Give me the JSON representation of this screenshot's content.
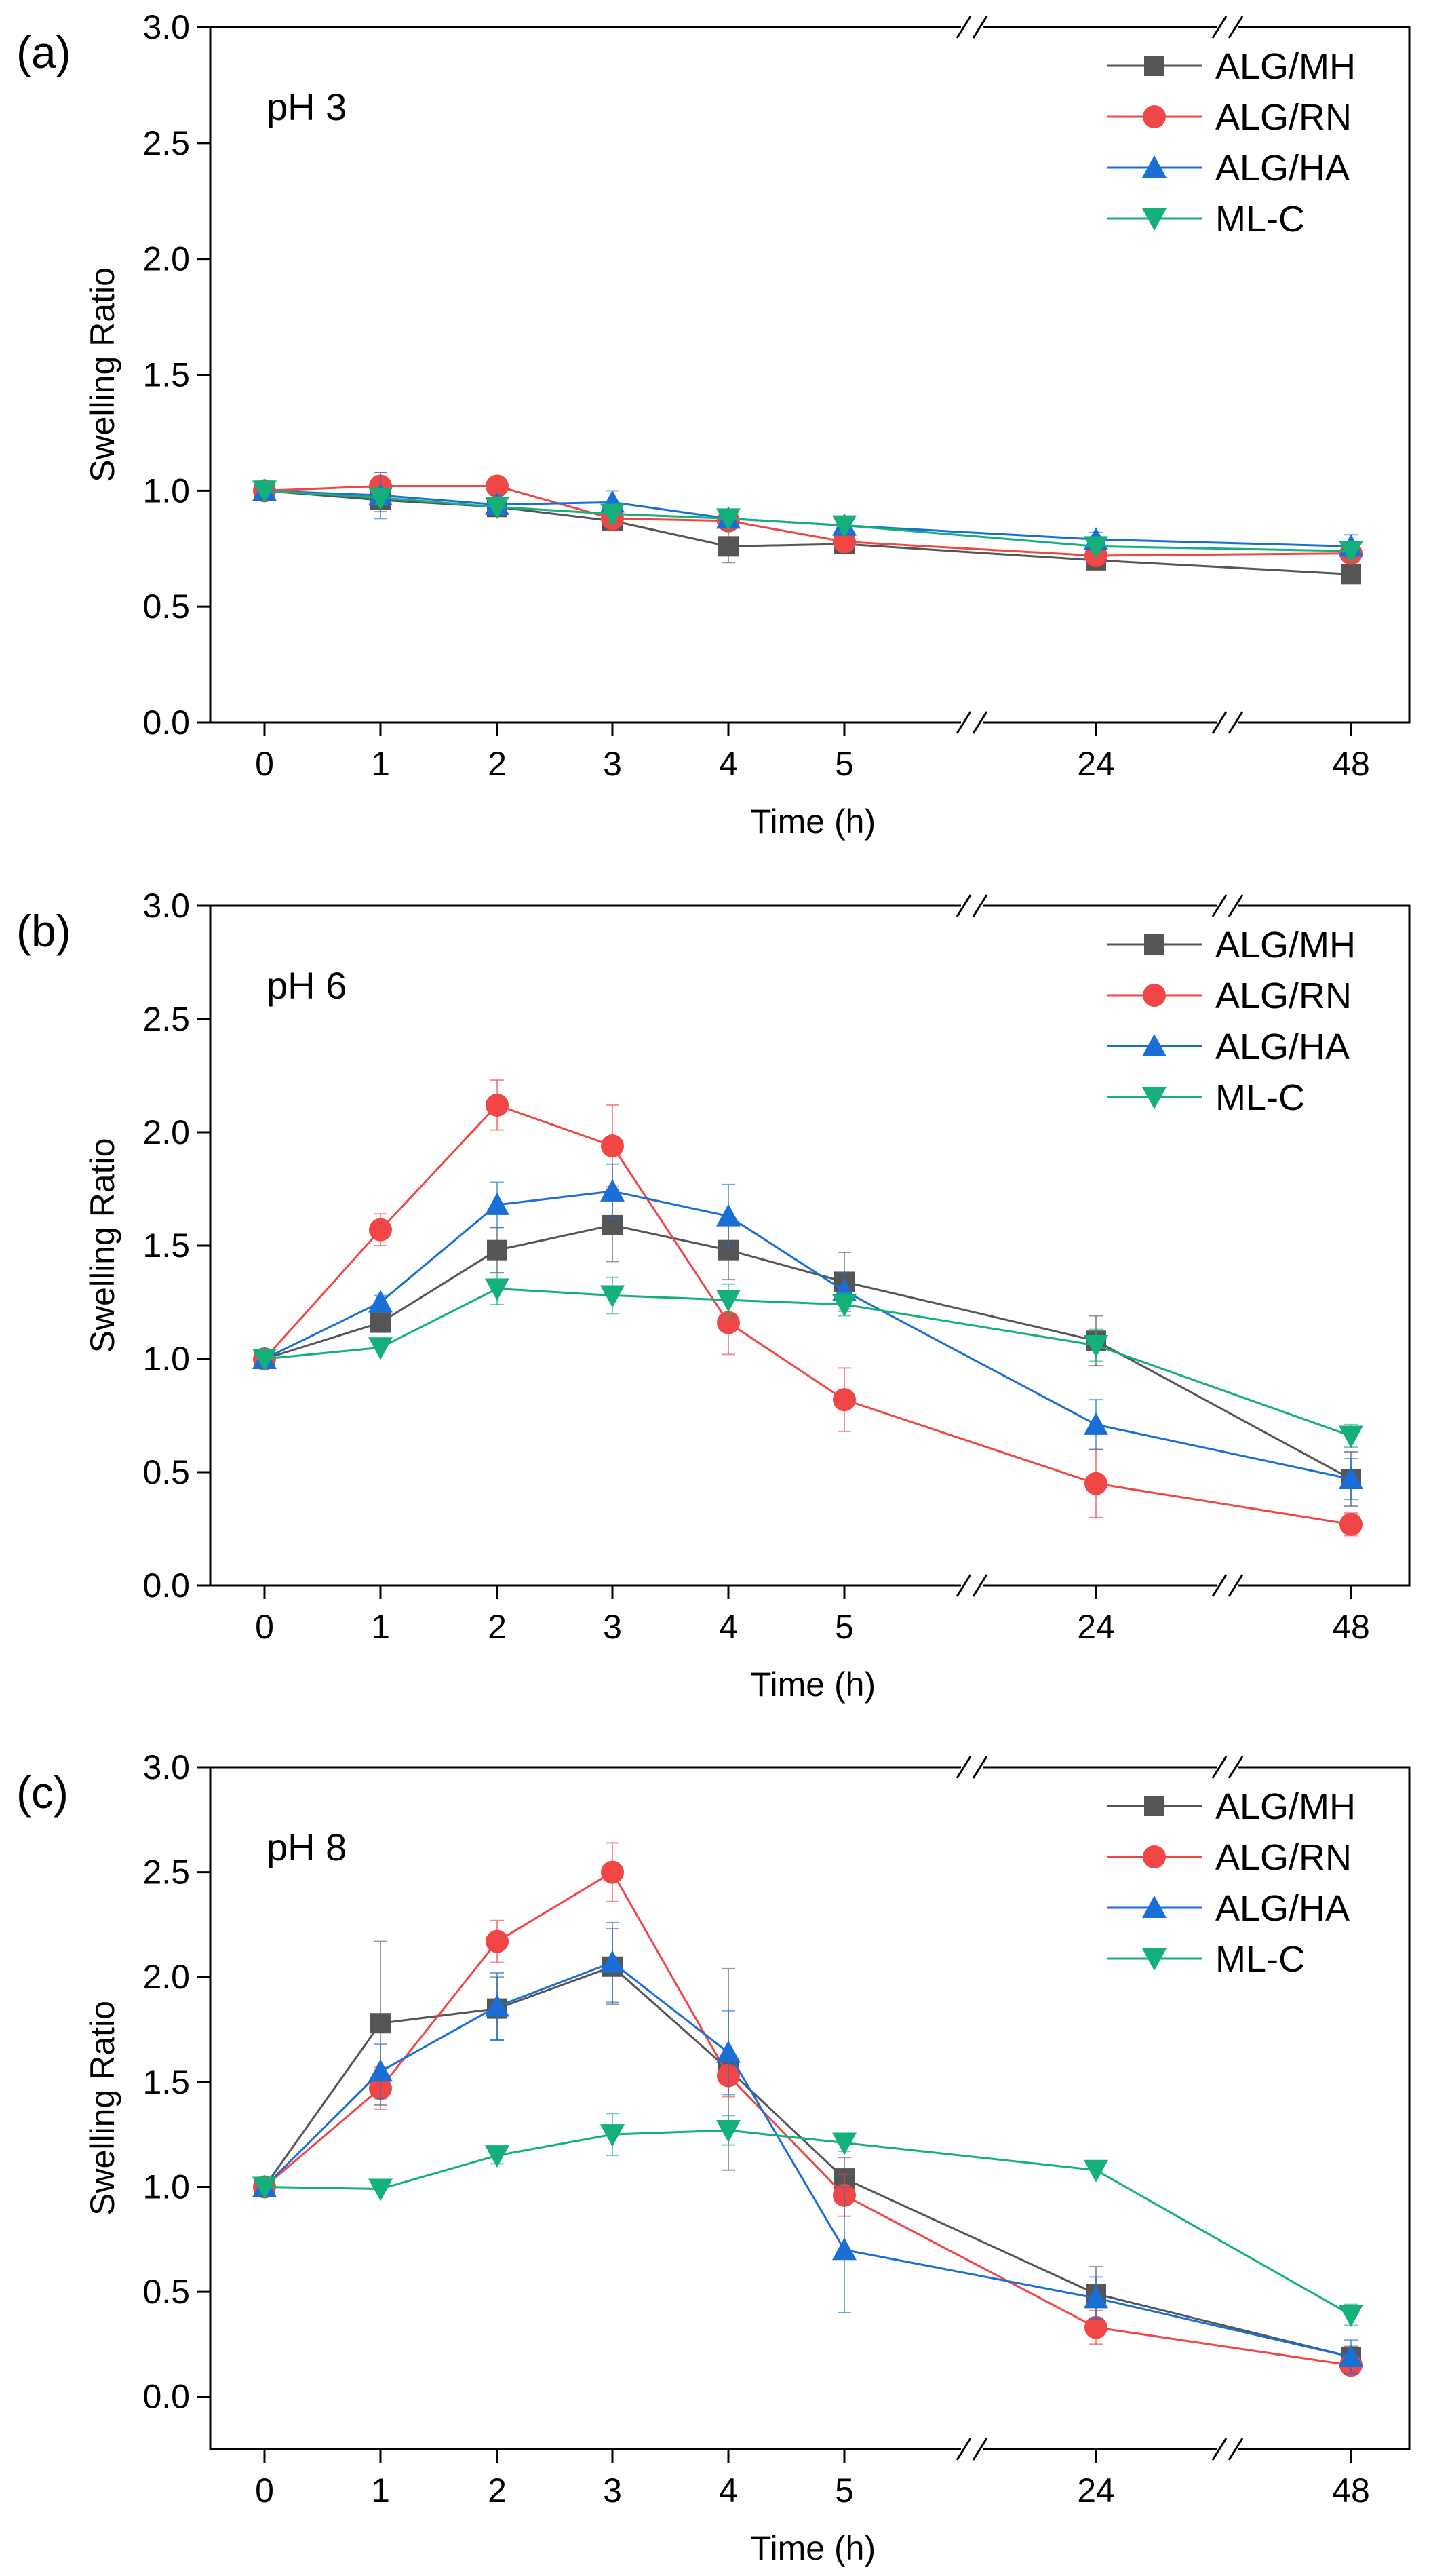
{
  "figure": {
    "break_marks": "//",
    "series_style": [
      {
        "name": "ALG/MH",
        "color": "#555555",
        "marker": "square"
      },
      {
        "name": "ALG/RN",
        "color": "#f04646",
        "marker": "circle"
      },
      {
        "name": "ALG/HA",
        "color": "#1a6fd6",
        "marker": "triangle-up"
      },
      {
        "name": "ML-C",
        "color": "#13b07a",
        "marker": "triangle-down"
      }
    ]
  },
  "chart_data": [
    {
      "type": "line",
      "panel_label": "(a)",
      "annotation": "pH 3",
      "title": "",
      "xlabel": "Time (h)",
      "ylabel": "Swelling Ratio",
      "categories": [
        "0",
        "1",
        "2",
        "3",
        "4",
        "5",
        "24",
        "48"
      ],
      "x_axis_break": "broken axis between 5 and 24 and between 24 and 48",
      "ylim": [
        0.0,
        3.0
      ],
      "yticks": [
        "0.0",
        "0.5",
        "1.0",
        "1.5",
        "2.0",
        "2.5",
        "3.0"
      ],
      "legend": "top-right",
      "series": [
        {
          "name": "ALG/MH",
          "values": [
            1.0,
            0.96,
            0.93,
            0.87,
            0.76,
            0.77,
            0.7,
            0.64
          ],
          "errors": [
            0.02,
            0.05,
            0.03,
            0.04,
            0.07,
            0.04,
            0.03,
            0.04
          ]
        },
        {
          "name": "ALG/RN",
          "values": [
            1.0,
            1.02,
            1.02,
            0.88,
            0.87,
            0.78,
            0.72,
            0.73
          ],
          "errors": [
            0.02,
            0.06,
            0.02,
            0.05,
            0.03,
            0.04,
            0.03,
            0.04
          ]
        },
        {
          "name": "ALG/HA",
          "values": [
            1.0,
            0.98,
            0.94,
            0.95,
            0.88,
            0.85,
            0.79,
            0.76
          ],
          "errors": [
            0.02,
            0.1,
            0.04,
            0.05,
            0.03,
            0.03,
            0.03,
            0.05
          ]
        },
        {
          "name": "ML-C",
          "values": [
            1.0,
            0.97,
            0.93,
            0.9,
            0.88,
            0.85,
            0.76,
            0.74
          ],
          "errors": [
            0.02,
            0.03,
            0.03,
            0.04,
            0.02,
            0.03,
            0.03,
            0.03
          ]
        }
      ]
    },
    {
      "type": "line",
      "panel_label": "(b)",
      "annotation": "pH 6",
      "title": "",
      "xlabel": "Time (h)",
      "ylabel": "Swelling Ratio",
      "categories": [
        "0",
        "1",
        "2",
        "3",
        "4",
        "5",
        "24",
        "48"
      ],
      "x_axis_break": "broken axis between 5 and 24 and between 24 and 48",
      "ylim": [
        0.0,
        3.0
      ],
      "yticks": [
        "0.0",
        "0.5",
        "1.0",
        "1.5",
        "2.0",
        "2.5",
        "3.0"
      ],
      "legend": "top-right",
      "series": [
        {
          "name": "ALG/MH",
          "values": [
            1.0,
            1.16,
            1.48,
            1.59,
            1.48,
            1.34,
            1.08,
            0.47
          ],
          "errors": [
            0.02,
            0.03,
            0.1,
            0.16,
            0.13,
            0.13,
            0.11,
            0.12
          ]
        },
        {
          "name": "ALG/RN",
          "values": [
            1.0,
            1.57,
            2.12,
            1.94,
            1.16,
            0.82,
            0.45,
            0.27
          ],
          "errors": [
            0.02,
            0.07,
            0.11,
            0.18,
            0.14,
            0.14,
            0.15,
            0.05
          ]
        },
        {
          "name": "ALG/HA",
          "values": [
            1.0,
            1.25,
            1.68,
            1.74,
            1.63,
            1.3,
            0.71,
            0.47
          ],
          "errors": [
            0.02,
            0.03,
            0.1,
            0.12,
            0.14,
            0.08,
            0.11,
            0.09
          ]
        },
        {
          "name": "ML-C",
          "values": [
            1.0,
            1.05,
            1.31,
            1.28,
            1.26,
            1.24,
            1.06,
            0.66
          ],
          "errors": [
            0.02,
            0.02,
            0.07,
            0.08,
            0.07,
            0.05,
            0.07,
            0.05
          ]
        }
      ]
    },
    {
      "type": "line",
      "panel_label": "(c)",
      "annotation": "pH 8",
      "title": "",
      "xlabel": "Time (h)",
      "ylabel": "Swelling Ratio",
      "categories": [
        "0",
        "1",
        "2",
        "3",
        "4",
        "5",
        "24",
        "48"
      ],
      "x_axis_break": "broken axis between 5 and 24 and between 24 and 48",
      "ylim": [
        -0.25,
        3.0
      ],
      "yticks": [
        "0.0",
        "0.5",
        "1.0",
        "1.5",
        "2.0",
        "2.5",
        "3.0"
      ],
      "legend": "top-right",
      "series": [
        {
          "name": "ALG/MH",
          "values": [
            1.0,
            1.78,
            1.85,
            2.05,
            1.56,
            1.04,
            0.49,
            0.19
          ],
          "errors": [
            0.02,
            0.39,
            0.15,
            0.18,
            0.48,
            0.1,
            0.13,
            0.05
          ]
        },
        {
          "name": "ALG/RN",
          "values": [
            1.0,
            1.47,
            2.17,
            2.5,
            1.53,
            0.96,
            0.33,
            0.15
          ],
          "errors": [
            0.02,
            0.1,
            0.1,
            0.14,
            0.1,
            0.1,
            0.08,
            0.04
          ]
        },
        {
          "name": "ALG/HA",
          "values": [
            1.0,
            1.55,
            1.86,
            2.07,
            1.64,
            0.7,
            0.47,
            0.19
          ],
          "errors": [
            0.02,
            0.13,
            0.16,
            0.19,
            0.2,
            0.3,
            0.1,
            0.08
          ]
        },
        {
          "name": "ML-C",
          "values": [
            1.0,
            0.99,
            1.15,
            1.25,
            1.27,
            1.21,
            1.08,
            0.39
          ],
          "errors": [
            0.02,
            0.02,
            0.04,
            0.1,
            0.07,
            0.04,
            0.02,
            0.05
          ]
        }
      ]
    }
  ]
}
